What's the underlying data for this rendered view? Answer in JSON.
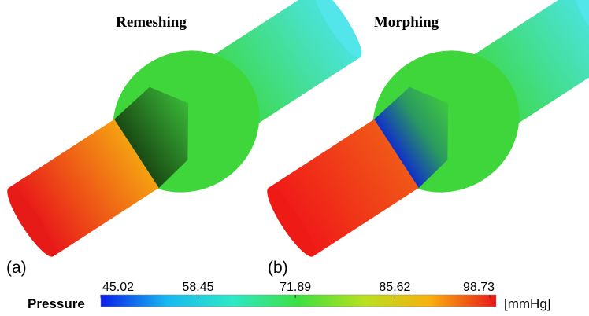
{
  "panels": [
    {
      "title": "Remeshing",
      "label": "(a)"
    },
    {
      "title": "Morphing",
      "label": "(b)"
    }
  ],
  "colorbar": {
    "title": "Pressure",
    "unit": "[mmHg]",
    "lim": [
      45.02,
      98.73
    ],
    "ticks": [
      45.02,
      58.45,
      71.89,
      85.62,
      98.73
    ],
    "colormap": [
      "#0a1ee8",
      "#18b8f0",
      "#2ee8c8",
      "#3ee040",
      "#b8e020",
      "#f8b010",
      "#e81818"
    ]
  }
}
